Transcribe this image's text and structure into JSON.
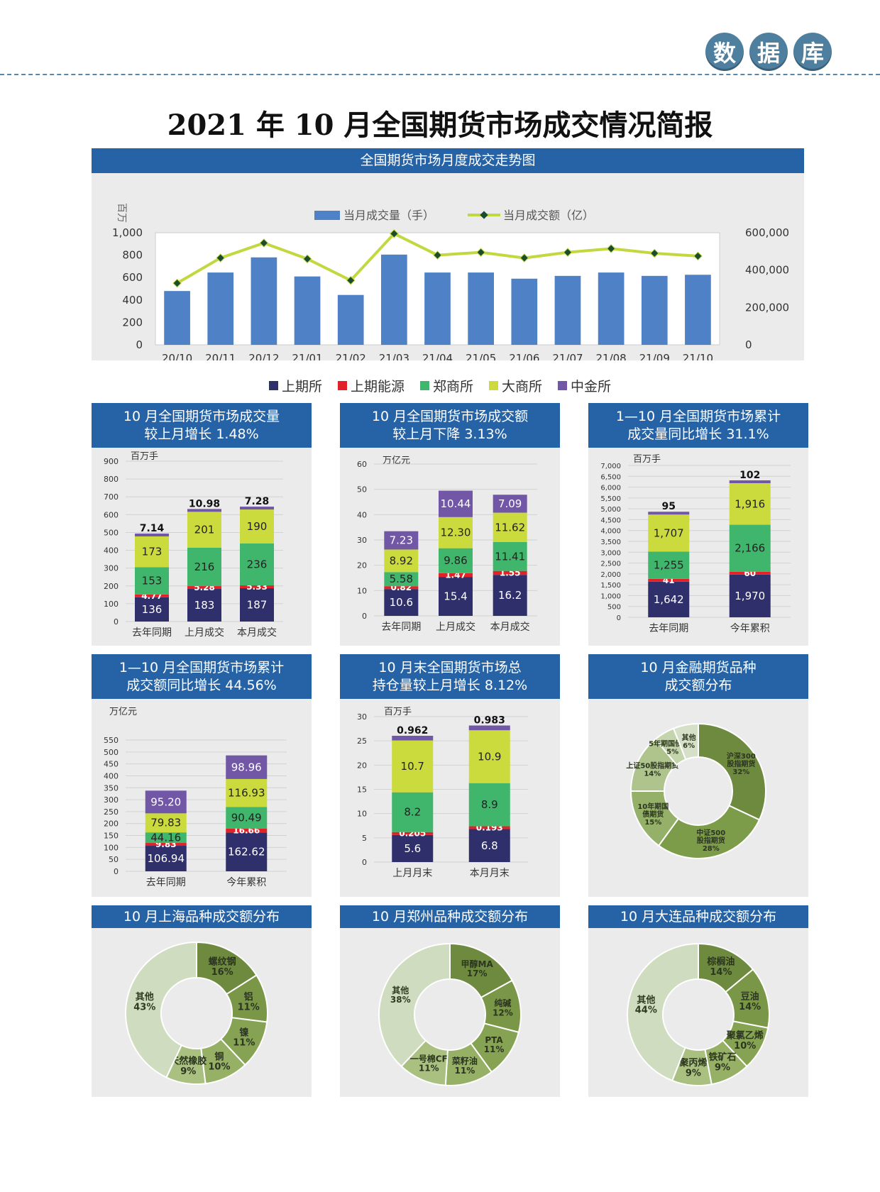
{
  "badges": [
    "数",
    "据",
    "库"
  ],
  "title": "2021 年 10 月全国期货市场成交情况简报",
  "legend": [
    {
      "name": "上期所",
      "color": "#2e2f6b"
    },
    {
      "name": "上期能源",
      "color": "#e32227"
    },
    {
      "name": "郑商所",
      "color": "#3fb66b"
    },
    {
      "name": "大商所",
      "color": "#cbdb3e"
    },
    {
      "name": "中金所",
      "color": "#7157a6"
    }
  ],
  "chart_data": [
    {
      "id": "trend",
      "type": "bar+line",
      "title": "全国期货市场月度成交走势图",
      "ylabel": "百万",
      "ylim": [
        0,
        1000
      ],
      "y2lim": [
        0,
        600000
      ],
      "yticks": [
        "0",
        "200",
        "400",
        "600",
        "800",
        "1,000"
      ],
      "y2ticks": [
        "0",
        "200,000",
        "400,000",
        "600,000"
      ],
      "categories": [
        "20/10",
        "20/11",
        "20/12",
        "21/01",
        "21/02",
        "21/03",
        "21/04",
        "21/05",
        "21/06",
        "21/07",
        "21/08",
        "21/09",
        "21/10"
      ],
      "series": [
        {
          "name": "当月成交量（手）",
          "type": "bar",
          "color": "#4f81c6",
          "values": [
            480,
            645,
            780,
            610,
            445,
            805,
            645,
            645,
            590,
            615,
            645,
            615,
            625
          ]
        },
        {
          "name": "当月成交额（亿）",
          "type": "line",
          "color": "#c3d83e",
          "values": [
            330000,
            465000,
            545000,
            460000,
            345000,
            595000,
            480000,
            495000,
            465000,
            495000,
            515000,
            490000,
            475000
          ]
        }
      ]
    },
    {
      "id": "c1",
      "type": "stacked-bar",
      "title": [
        "10 月全国期货市场成交量",
        "较上月增长 1.48%"
      ],
      "unit": "百万手",
      "ylim": [
        0,
        900
      ],
      "yticks": [
        0,
        100,
        200,
        300,
        400,
        500,
        600,
        700,
        800,
        900
      ],
      "categories": [
        "去年同期",
        "上月成交",
        "本月成交"
      ],
      "series": [
        {
          "name": "上期所",
          "values": [
            136,
            183,
            187
          ],
          "labels": [
            "136",
            "183",
            "187"
          ]
        },
        {
          "name": "上期能源",
          "values": [
            4.77,
            5.28,
            5.33
          ],
          "labels": [
            "4.77",
            "5.28",
            "5.33"
          ]
        },
        {
          "name": "郑商所",
          "values": [
            153,
            216,
            236
          ],
          "labels": [
            "153",
            "216",
            "236"
          ]
        },
        {
          "name": "大商所",
          "values": [
            173,
            201,
            190
          ],
          "labels": [
            "173",
            "201",
            "190"
          ]
        },
        {
          "name": "中金所",
          "values": [
            7.14,
            10.98,
            7.28
          ],
          "labels": [
            "7.14",
            "10.98",
            "7.28"
          ]
        }
      ]
    },
    {
      "id": "c2",
      "type": "stacked-bar",
      "title": [
        "10 月全国期货市场成交额",
        "较上月下降 3.13%"
      ],
      "unit": "万亿元",
      "ylim": [
        0,
        60
      ],
      "yticks": [
        0,
        10,
        20,
        30,
        40,
        50,
        60
      ],
      "categories": [
        "去年同期",
        "上月成交",
        "本月成交"
      ],
      "series": [
        {
          "name": "上期所",
          "values": [
            10.6,
            15.4,
            16.2
          ],
          "labels": [
            "10.6",
            "15.4",
            "16.2"
          ]
        },
        {
          "name": "上期能源",
          "values": [
            0.82,
            1.47,
            1.55
          ],
          "labels": [
            "0.82",
            "1.47",
            "1.55"
          ]
        },
        {
          "name": "郑商所",
          "values": [
            5.58,
            9.86,
            11.41
          ],
          "labels": [
            "5.58",
            "9.86",
            "11.41"
          ]
        },
        {
          "name": "大商所",
          "values": [
            8.92,
            12.3,
            11.62
          ],
          "labels": [
            "8.92",
            "12.30",
            "11.62"
          ]
        },
        {
          "name": "中金所",
          "values": [
            7.23,
            10.44,
            7.09
          ],
          "labels": [
            "7.23",
            "10.44",
            "7.09"
          ]
        }
      ]
    },
    {
      "id": "c3",
      "type": "stacked-bar",
      "title": [
        "1—10 月全国期货市场累计",
        "成交量同比增长 31.1%"
      ],
      "unit": "百万手",
      "ylim": [
        0,
        7000
      ],
      "yticks": [
        "0",
        "500",
        "1,000",
        "1,500",
        "2,000",
        "2,500",
        "3,000",
        "3,500",
        "4,000",
        "4,500",
        "5,000",
        "5,500",
        "6,000",
        "6,500",
        "7,000"
      ],
      "categories": [
        "去年同期",
        "今年累积"
      ],
      "series": [
        {
          "name": "上期所",
          "values": [
            1642,
            1970
          ],
          "labels": [
            "1,642",
            "1,970"
          ]
        },
        {
          "name": "上期能源",
          "values": [
            41,
            60
          ],
          "labels": [
            "41",
            "60"
          ]
        },
        {
          "name": "郑商所",
          "values": [
            1255,
            2166
          ],
          "labels": [
            "1,255",
            "2,166"
          ]
        },
        {
          "name": "大商所",
          "values": [
            1707,
            1916
          ],
          "labels": [
            "1,707",
            "1,916"
          ]
        },
        {
          "name": "中金所",
          "values": [
            95,
            102
          ],
          "labels": [
            "95",
            "102"
          ]
        }
      ]
    },
    {
      "id": "c4",
      "type": "stacked-bar",
      "title": [
        "1—10 月全国期货市场累计",
        "成交额同比增长 44.56%"
      ],
      "unit": "万亿元",
      "ylim": [
        0,
        550
      ],
      "yticks": [
        0,
        50,
        100,
        150,
        200,
        250,
        300,
        350,
        400,
        450,
        500,
        550
      ],
      "categories": [
        "去年同期",
        "今年累积"
      ],
      "series": [
        {
          "name": "上期所",
          "values": [
            106.94,
            162.62
          ],
          "labels": [
            "106.94",
            "162.62"
          ]
        },
        {
          "name": "上期能源",
          "values": [
            9.83,
            16.66
          ],
          "labels": [
            "9.83",
            "16.66"
          ]
        },
        {
          "name": "郑商所",
          "values": [
            44.16,
            90.49
          ],
          "labels": [
            "44.16",
            "90.49"
          ]
        },
        {
          "name": "大商所",
          "values": [
            79.83,
            116.93
          ],
          "labels": [
            "79.83",
            "116.93"
          ]
        },
        {
          "name": "中金所",
          "values": [
            95.2,
            98.96
          ],
          "labels": [
            "95.20",
            "98.96"
          ]
        }
      ]
    },
    {
      "id": "c5",
      "type": "stacked-bar",
      "title": [
        "10 月末全国期货市场总",
        "持仓量较上月增长 8.12%"
      ],
      "unit": "百万手",
      "ylim": [
        0,
        30
      ],
      "yticks": [
        0,
        5,
        10,
        15,
        20,
        25,
        30
      ],
      "categories": [
        "上月月末",
        "本月月末"
      ],
      "series": [
        {
          "name": "上期所",
          "values": [
            5.6,
            6.8
          ],
          "labels": [
            "5.6",
            "6.8"
          ]
        },
        {
          "name": "上期能源",
          "values": [
            0.205,
            0.193
          ],
          "labels": [
            "0.205",
            "0.193"
          ]
        },
        {
          "name": "郑商所",
          "values": [
            8.2,
            8.9
          ],
          "labels": [
            "8.2",
            "8.9"
          ]
        },
        {
          "name": "大商所",
          "values": [
            10.7,
            10.9
          ],
          "labels": [
            "10.7",
            "10.9"
          ]
        },
        {
          "name": "中金所",
          "values": [
            0.962,
            0.983
          ],
          "labels": [
            "0.962",
            "0.983"
          ]
        }
      ]
    },
    {
      "id": "d1",
      "type": "pie",
      "title": [
        "10 月金融期货品种",
        "成交额分布"
      ],
      "slices": [
        {
          "name": "沪深300\n股指期货",
          "label": "32%",
          "value": 32,
          "color": "#6e8a3e"
        },
        {
          "name": "中证500\n股指期货",
          "label": "28%",
          "value": 28,
          "color": "#7d9c4a"
        },
        {
          "name": "10年期国\n债期货",
          "label": "15%",
          "value": 15,
          "color": "#95b068"
        },
        {
          "name": "上证50股指期货",
          "label": "14%",
          "value": 14,
          "color": "#aec48c"
        },
        {
          "name": "5年期国债期货",
          "label": "5%",
          "value": 5,
          "color": "#c4d4ad"
        },
        {
          "name": "其他",
          "label": "6%",
          "value": 6,
          "color": "#d6e0c8"
        }
      ]
    },
    {
      "id": "d2",
      "type": "pie",
      "title": [
        "10 月上海品种成交额分布"
      ],
      "slices": [
        {
          "name": "螺纹钢",
          "label": "16%",
          "value": 16,
          "color": "#6e8a3e"
        },
        {
          "name": "铝",
          "label": "11%",
          "value": 11,
          "color": "#7a9747"
        },
        {
          "name": "镍",
          "label": "11%",
          "value": 11,
          "color": "#86a353"
        },
        {
          "name": "铜",
          "label": "10%",
          "value": 10,
          "color": "#96b065"
        },
        {
          "name": "天然橡胶",
          "label": "9%",
          "value": 9,
          "color": "#a9c080"
        },
        {
          "name": "其他",
          "label": "43%",
          "value": 43,
          "color": "#cfdcbf"
        }
      ]
    },
    {
      "id": "d3",
      "type": "pie",
      "title": [
        "10 月郑州品种成交额分布"
      ],
      "slices": [
        {
          "name": "甲醇MA",
          "label": "17%",
          "value": 17,
          "color": "#6e8a3e"
        },
        {
          "name": "纯碱",
          "label": "12%",
          "value": 12,
          "color": "#7a9747"
        },
        {
          "name": "PTA",
          "label": "11%",
          "value": 11,
          "color": "#86a353"
        },
        {
          "name": "菜籽油",
          "label": "11%",
          "value": 11,
          "color": "#96b065"
        },
        {
          "name": "一号棉CF",
          "label": "11%",
          "value": 11,
          "color": "#a9c080"
        },
        {
          "name": "其他",
          "label": "38%",
          "value": 38,
          "color": "#cfdcbf"
        }
      ]
    },
    {
      "id": "d4",
      "type": "pie",
      "title": [
        "10 月大连品种成交额分布"
      ],
      "slices": [
        {
          "name": "棕榈油",
          "label": "14%",
          "value": 14,
          "color": "#6e8a3e"
        },
        {
          "name": "豆油",
          "label": "14%",
          "value": 14,
          "color": "#7a9747"
        },
        {
          "name": "聚氯乙烯",
          "label": "10%",
          "value": 10,
          "color": "#86a353"
        },
        {
          "name": "铁矿石",
          "label": "9%",
          "value": 9,
          "color": "#96b065"
        },
        {
          "name": "聚丙烯",
          "label": "9%",
          "value": 9,
          "color": "#a9c080"
        },
        {
          "name": "其他",
          "label": "44%",
          "value": 44,
          "color": "#cfdcbf"
        }
      ]
    }
  ]
}
